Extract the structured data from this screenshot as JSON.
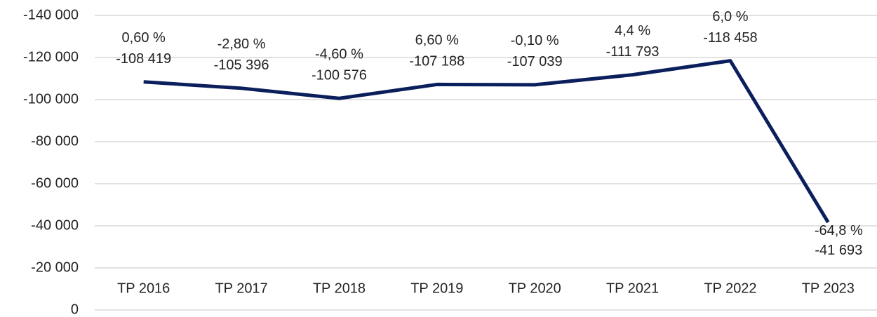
{
  "chart_data": {
    "type": "line",
    "categories": [
      "TP 2016",
      "TP 2017",
      "TP 2018",
      "TP 2019",
      "TP 2020",
      "TP 2021",
      "TP 2022",
      "TP 2023"
    ],
    "values": [
      -108419,
      -105396,
      -100576,
      -107188,
      -107039,
      -111793,
      -118458,
      -41693
    ],
    "value_labels": [
      "-108 419",
      "-105 396",
      "-100 576",
      "-107 188",
      "-107 039",
      "-111 793",
      "-118 458",
      "-41 693"
    ],
    "change_labels": [
      "0,60 %",
      "-2,80 %",
      "-4,60 %",
      "6,60 %",
      "-0,10 %",
      "4,4 %",
      "6,0 %",
      "-64,8 %"
    ],
    "color": "#0b1f5c",
    "ylim": [
      0,
      -140000
    ],
    "yticks": [
      {
        "value": 0,
        "label": "0"
      },
      {
        "value": -20000,
        "label": "-20 000"
      },
      {
        "value": -40000,
        "label": "-40 000"
      },
      {
        "value": -60000,
        "label": "-60 000"
      },
      {
        "value": -80000,
        "label": "-80 000"
      },
      {
        "value": -100000,
        "label": "-100 000"
      },
      {
        "value": -120000,
        "label": "-120 000"
      },
      {
        "value": -140000,
        "label": "-140 000"
      }
    ],
    "grid": true
  }
}
